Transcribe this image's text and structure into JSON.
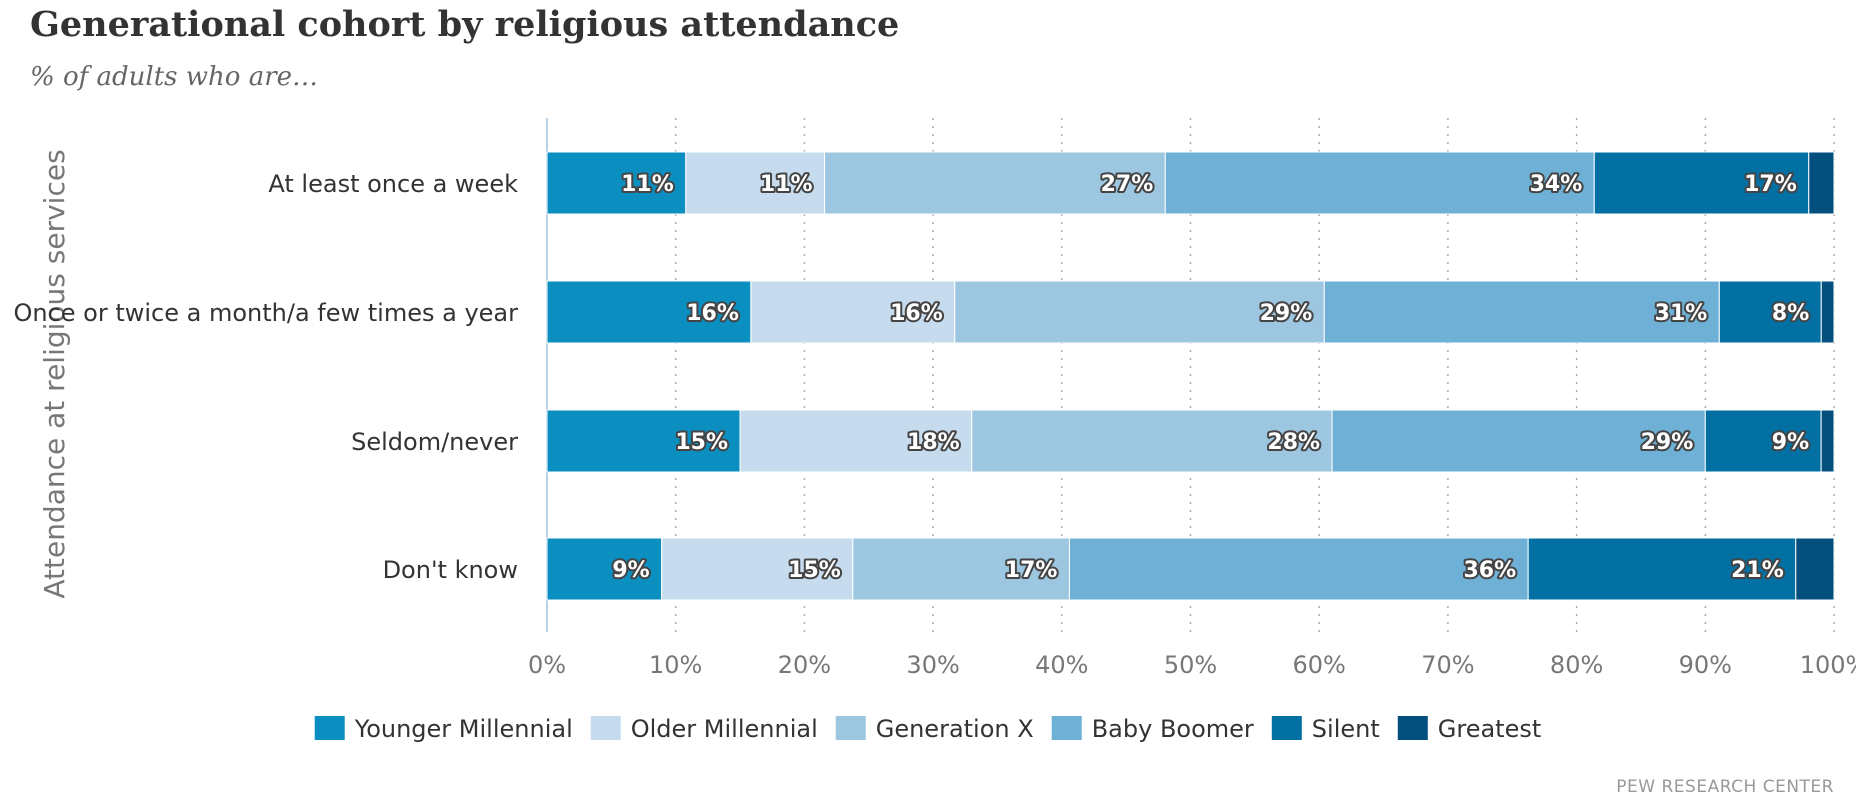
{
  "chart_data": {
    "type": "bar",
    "orientation": "horizontal",
    "stacked": true,
    "title": "Generational cohort by religious attendance",
    "subtitle": "% of adults who are…",
    "ylabel": "Attendance at religious services",
    "xlabel": "",
    "xlim": [
      0,
      100
    ],
    "x_ticks": [
      0,
      10,
      20,
      30,
      40,
      50,
      60,
      70,
      80,
      90,
      100
    ],
    "x_tick_labels": [
      "0%",
      "10%",
      "20%",
      "30%",
      "40%",
      "50%",
      "60%",
      "70%",
      "80%",
      "90%",
      "100%"
    ],
    "grid": "vertical dotted",
    "legend_position": "bottom",
    "categories": [
      "At least once a week",
      "Once or twice a month/a few times a year",
      "Seldom/never",
      "Don't know"
    ],
    "series": [
      {
        "name": "Younger Millennial",
        "color": "#0b8ec0",
        "values": [
          11,
          16,
          15,
          9
        ],
        "labels": [
          "11%",
          "16%",
          "15%",
          "9%"
        ]
      },
      {
        "name": "Older Millennial",
        "color": "#c6dcee",
        "values": [
          11,
          16,
          18,
          15
        ],
        "labels": [
          "11%",
          "16%",
          "18%",
          "15%"
        ]
      },
      {
        "name": "Generation X",
        "color": "#9dc6e1",
        "values": [
          27,
          29,
          28,
          17
        ],
        "labels": [
          "27%",
          "29%",
          "28%",
          "17%"
        ]
      },
      {
        "name": "Baby Boomer",
        "color": "#6fb0d6",
        "values": [
          34,
          31,
          29,
          36
        ],
        "labels": [
          "34%",
          "31%",
          "29%",
          "36%"
        ]
      },
      {
        "name": "Silent",
        "color": "#0370a3",
        "values": [
          17,
          8,
          9,
          21
        ],
        "labels": [
          "17%",
          "8%",
          "9%",
          "21%"
        ]
      },
      {
        "name": "Greatest",
        "color": "#034f7d",
        "values": [
          2,
          1,
          1,
          3
        ],
        "labels": [
          "",
          "",
          "",
          ""
        ]
      }
    ]
  },
  "source": "PEW RESEARCH CENTER"
}
